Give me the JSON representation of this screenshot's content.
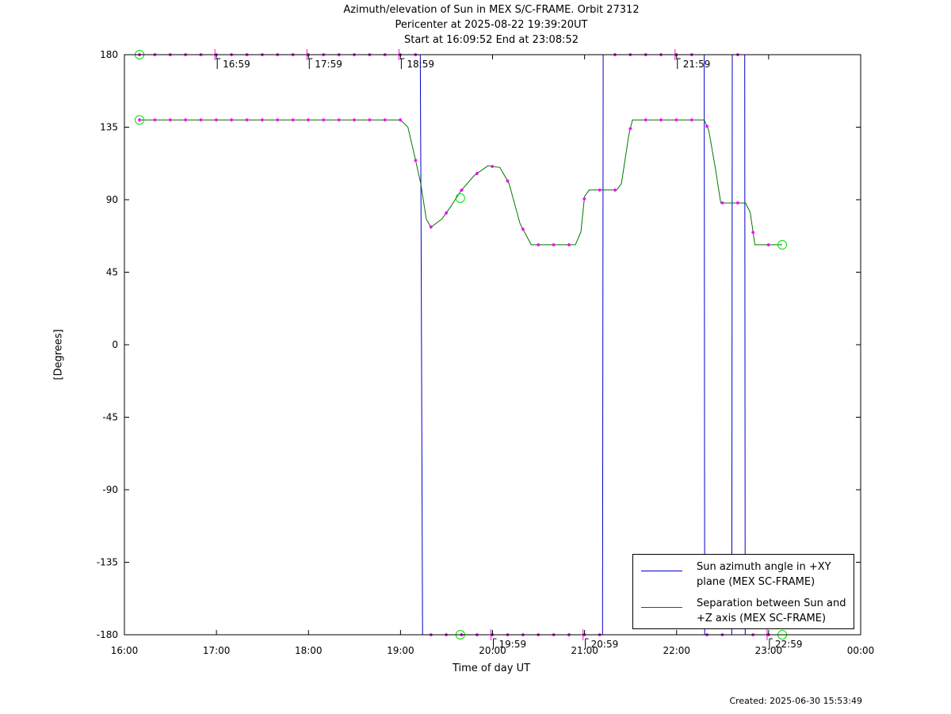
{
  "title": {
    "line1": "Azimuth/elevation of Sun in MEX S/C-FRAME.  Orbit 27312",
    "line2": "Pericenter at 2025-08-22 19:39:20UT",
    "line3": "Start at 16:09:52 End at 23:08:52"
  },
  "created": "Created: 2025-06-30 15:53:49",
  "chart_data": {
    "type": "line",
    "xlabel": "Time of day UT",
    "ylabel": "[Degrees]",
    "xlim": [
      16.0,
      24.0
    ],
    "ylim": [
      -180,
      180
    ],
    "x_ticks": [
      16,
      17,
      18,
      19,
      20,
      21,
      22,
      23,
      24
    ],
    "x_tick_labels": [
      "16:00",
      "17:00",
      "18:00",
      "19:00",
      "20:00",
      "21:00",
      "22:00",
      "23:00",
      "00:00"
    ],
    "y_ticks": [
      180,
      135,
      90,
      45,
      0,
      -45,
      -90,
      -135,
      -180
    ],
    "y_tick_labels": [
      "180",
      "135",
      "90",
      "45",
      "0",
      "-45",
      "-90",
      "-135",
      "-180"
    ],
    "grid": false,
    "legend_position": "bottom-right",
    "series": [
      {
        "name": "Sun azimuth angle in +XY plane (MEX SC-FRAME)",
        "name_lines": [
          "Sun azimuth angle in +XY",
          "plane (MEX SC-FRAME)"
        ],
        "color": "#0000cc",
        "x": [
          16.164,
          19.215,
          19.222,
          19.24,
          21.195,
          21.202,
          22.3,
          22.305,
          22.6,
          22.605,
          22.74,
          22.745,
          23.148
        ],
        "y": [
          180,
          180,
          90,
          -180,
          -180,
          180,
          180,
          -180,
          -180,
          180,
          180,
          -180,
          -180
        ]
      },
      {
        "name": "Separation between Sun and +Z axis (MEX SC-FRAME)",
        "name_lines": [
          "Separation between Sun and",
          "+Z axis (MEX SC-FRAME)"
        ],
        "color": "#007700",
        "x": [
          16.164,
          19.0,
          19.08,
          19.15,
          19.22,
          19.28,
          19.33,
          19.45,
          19.55,
          19.65,
          19.8,
          19.95,
          20.08,
          20.18,
          20.3,
          20.42,
          20.9,
          20.96,
          21.0,
          21.05,
          21.35,
          21.4,
          21.48,
          21.52,
          22.3,
          22.35,
          22.42,
          22.48,
          22.75,
          22.8,
          22.85,
          23.148
        ],
        "y": [
          139.5,
          139.5,
          135,
          118,
          100,
          78,
          73,
          78,
          86,
          95,
          105,
          111,
          110,
          100,
          75,
          62,
          62,
          70,
          92,
          96,
          96,
          100,
          130,
          139.5,
          139.5,
          133,
          110,
          88,
          88,
          82,
          62,
          62
        ]
      }
    ],
    "markers": [
      {
        "x": 16.164,
        "y": 180
      },
      {
        "x": 16.164,
        "y": 139.5
      },
      {
        "x": 19.65,
        "y": -180
      },
      {
        "x": 19.65,
        "y": 91
      },
      {
        "x": 23.148,
        "y": -180
      },
      {
        "x": 23.148,
        "y": 62
      }
    ],
    "hour_ticks": [
      {
        "label": "16:59",
        "x": 16.983,
        "y": 180
      },
      {
        "label": "17:59",
        "x": 17.983,
        "y": 180
      },
      {
        "label": "18:59",
        "x": 18.983,
        "y": 180
      },
      {
        "label": "19:59",
        "x": 19.983,
        "y": -180
      },
      {
        "label": "20:59",
        "x": 20.983,
        "y": -180
      },
      {
        "label": "21:59",
        "x": 21.983,
        "y": 180
      },
      {
        "label": "22:59",
        "x": 22.983,
        "y": -180
      }
    ]
  }
}
